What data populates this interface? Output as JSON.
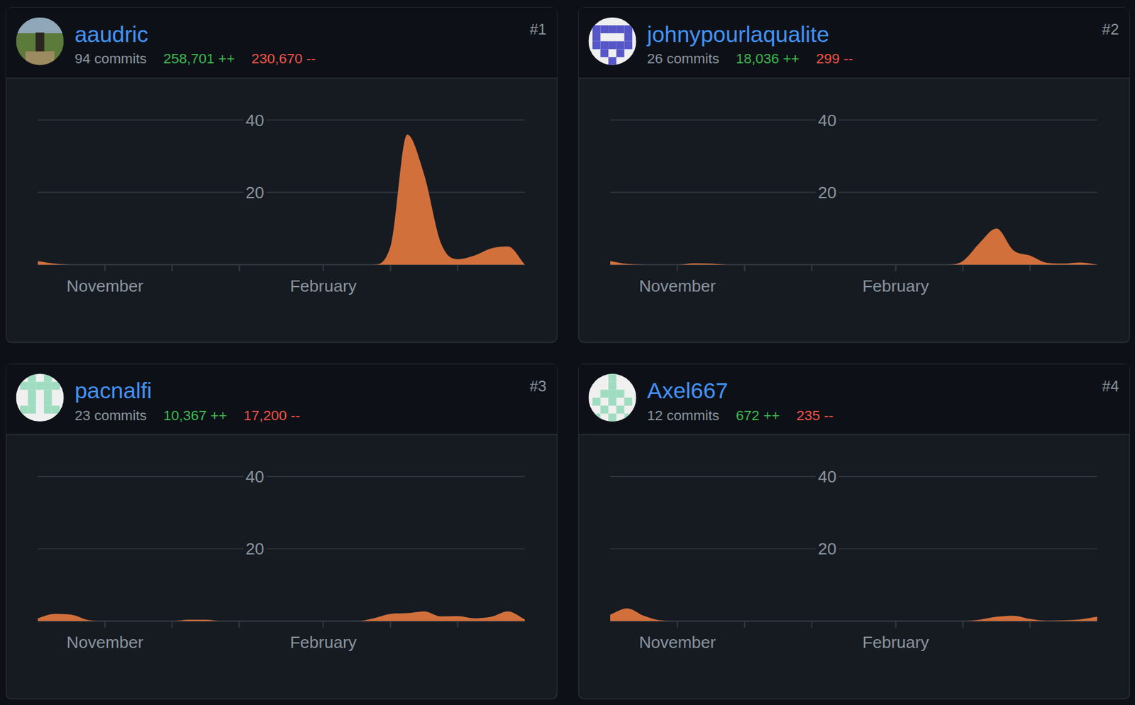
{
  "chart_data": [
    {
      "type": "area",
      "title": "aaudric",
      "rank": "#1",
      "commits": "94 commits",
      "additions": "258,701 ++",
      "deletions": "230,670 --",
      "color": "#d2703c",
      "grid": true,
      "categories": [
        null,
        null,
        null,
        null,
        "November",
        null,
        null,
        null,
        null,
        null,
        null,
        null,
        null,
        null,
        null,
        null,
        null,
        "February",
        null,
        null,
        null,
        null,
        null,
        null,
        null,
        null,
        null,
        null,
        null,
        null
      ],
      "values": [
        1,
        0.3,
        0,
        0,
        0,
        0,
        0,
        0,
        0,
        0,
        0,
        0,
        0,
        0,
        0,
        0,
        0,
        0,
        0,
        0,
        0,
        5,
        36,
        25,
        6,
        1.5,
        2.5,
        4.5,
        5,
        0
      ],
      "ylim": [
        0,
        40
      ],
      "yticks": [
        20,
        40
      ]
    },
    {
      "type": "area",
      "title": "johnypourlaqualite",
      "rank": "#2",
      "commits": "26 commits",
      "additions": "18,036 ++",
      "deletions": "299 --",
      "color": "#d2703c",
      "grid": true,
      "categories": [
        null,
        null,
        null,
        null,
        "November",
        null,
        null,
        null,
        null,
        null,
        null,
        null,
        null,
        null,
        null,
        null,
        null,
        "February",
        null,
        null,
        null,
        null,
        null,
        null,
        null,
        null,
        null,
        null,
        null,
        null
      ],
      "values": [
        1,
        0.2,
        0,
        0,
        0,
        0.4,
        0.3,
        0,
        0,
        0,
        0,
        0,
        0,
        0,
        0,
        0,
        0,
        0,
        0,
        0,
        0,
        1,
        6,
        10,
        4,
        2.5,
        0.5,
        0.3,
        0.6,
        0
      ],
      "ylim": [
        0,
        40
      ],
      "yticks": [
        20,
        40
      ]
    },
    {
      "type": "area",
      "title": "pacnalfi",
      "rank": "#3",
      "commits": "23 commits",
      "additions": "10,367 ++",
      "deletions": "17,200 --",
      "color": "#d2703c",
      "grid": true,
      "categories": [
        null,
        null,
        null,
        null,
        "November",
        null,
        null,
        null,
        null,
        null,
        null,
        null,
        null,
        null,
        null,
        null,
        null,
        "February",
        null,
        null,
        null,
        null,
        null,
        null,
        null,
        null,
        null,
        null,
        null,
        null
      ],
      "values": [
        0.8,
        2,
        1.8,
        0.3,
        0,
        0,
        0,
        0,
        0,
        0.4,
        0.4,
        0,
        0,
        0,
        0,
        0,
        0,
        0,
        0,
        0,
        0.8,
        2,
        2.2,
        2.7,
        1.3,
        1.4,
        0.8,
        1.2,
        2.7,
        0.5
      ],
      "ylim": [
        0,
        40
      ],
      "yticks": [
        20,
        40
      ]
    },
    {
      "type": "area",
      "title": "Axel667",
      "rank": "#4",
      "commits": "12 commits",
      "additions": "672 ++",
      "deletions": "235 --",
      "color": "#d2703c",
      "grid": true,
      "categories": [
        null,
        null,
        null,
        null,
        "November",
        null,
        null,
        null,
        null,
        null,
        null,
        null,
        null,
        null,
        null,
        null,
        null,
        "February",
        null,
        null,
        null,
        null,
        null,
        null,
        null,
        null,
        null,
        null,
        null,
        null
      ],
      "values": [
        1.8,
        3.5,
        1.5,
        0.2,
        0,
        0,
        0,
        0,
        0,
        0,
        0,
        0,
        0,
        0,
        0,
        0,
        0,
        0,
        0,
        0,
        0,
        0,
        0.4,
        1.2,
        1.5,
        0.6,
        0.1,
        0.2,
        0.5,
        1.2
      ],
      "ylim": [
        0,
        40
      ],
      "yticks": [
        20,
        40
      ]
    }
  ]
}
